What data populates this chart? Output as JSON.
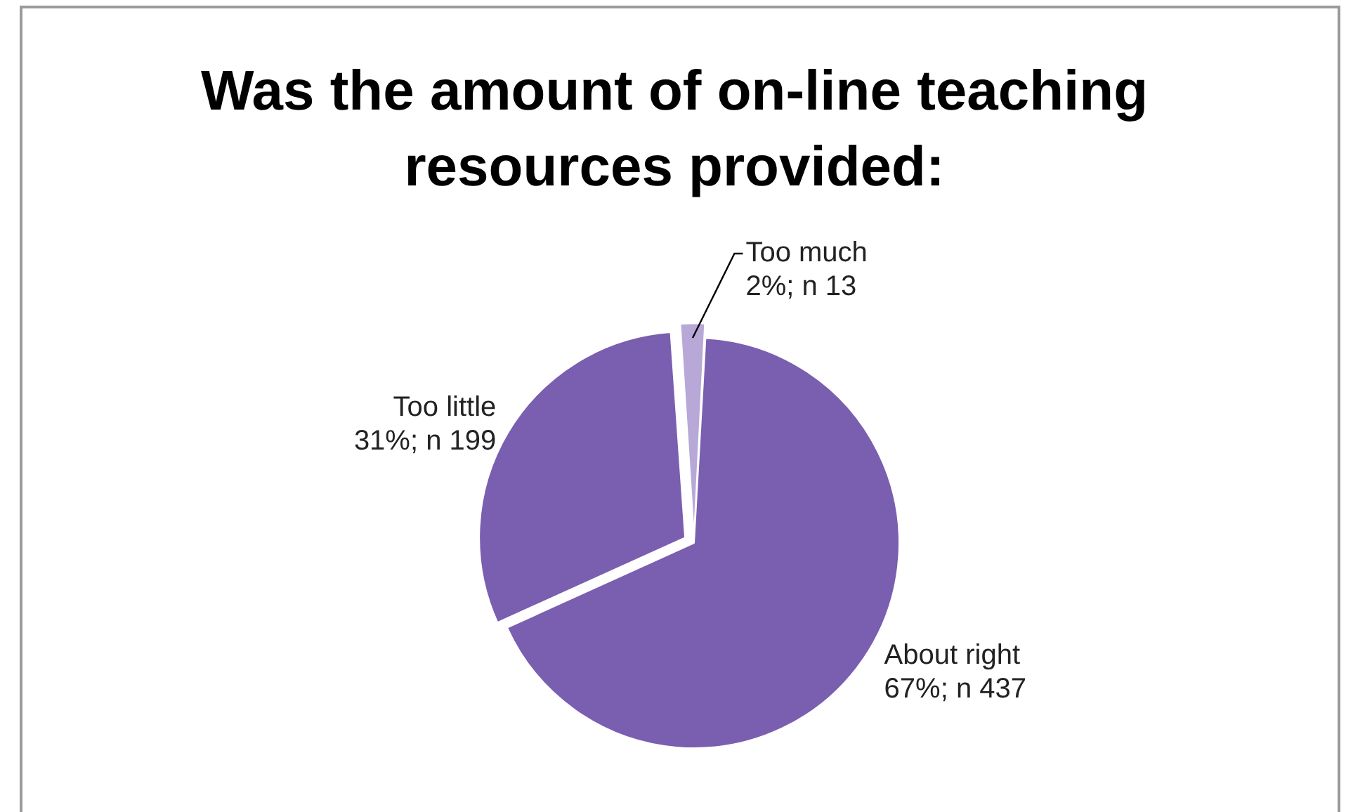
{
  "chart_data": {
    "type": "pie",
    "title": "Was the amount of on-line teaching resources provided:",
    "categories": [
      "Too much",
      "About right",
      "Too little"
    ],
    "values": [
      13,
      437,
      199
    ],
    "value_labels": [
      "2%; n 13",
      "67%; n 437",
      "31%; n 199"
    ],
    "colors": [
      "#b7a8d8",
      "#7a5eb0",
      "#7a5eb0"
    ],
    "legend": false
  }
}
